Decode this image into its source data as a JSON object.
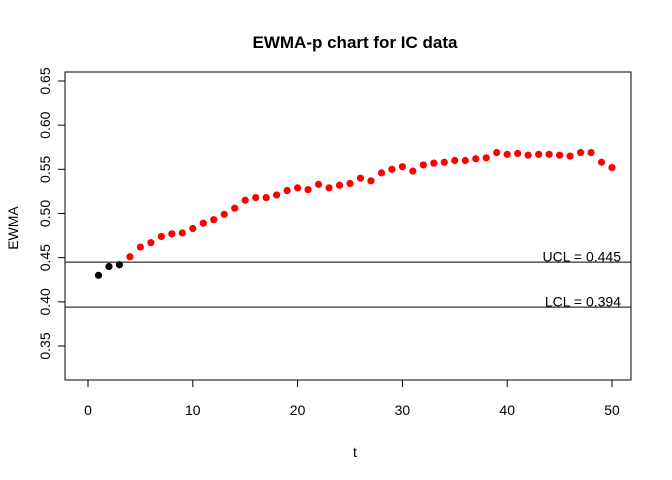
{
  "chart_data": {
    "type": "scatter",
    "title": "EWMA-p chart for IC data",
    "xlabel": "t",
    "ylabel": "EWMA",
    "xlim": [
      0,
      52
    ],
    "ylim": [
      0.31,
      0.66
    ],
    "x_ticks": [
      "0",
      "10",
      "20",
      "30",
      "40",
      "50"
    ],
    "y_ticks": [
      "0.35",
      "0.40",
      "0.45",
      "0.50",
      "0.55",
      "0.60",
      "0.65"
    ],
    "grid": false,
    "limits": [
      {
        "name": "UCL",
        "value": 0.445,
        "label": "UCL = 0.445"
      },
      {
        "name": "LCL",
        "value": 0.394,
        "label": "LCL = 0.394"
      }
    ],
    "series": [
      {
        "color": "#000000",
        "x": [
          1,
          2,
          3
        ],
        "y": [
          0.43,
          0.44,
          0.442
        ]
      },
      {
        "color": "#ff0000",
        "x": [
          4,
          5,
          6,
          7,
          8,
          9,
          10,
          11,
          12,
          13,
          14,
          15,
          16,
          17,
          18,
          19,
          20,
          21,
          22,
          23,
          24,
          25,
          26,
          27,
          28,
          29,
          30,
          31,
          32,
          33,
          34,
          35,
          36,
          37,
          38,
          39,
          40,
          41,
          42,
          43,
          44,
          45,
          46,
          47,
          48,
          49,
          50
        ],
        "y": [
          0.451,
          0.462,
          0.467,
          0.474,
          0.477,
          0.478,
          0.483,
          0.489,
          0.493,
          0.499,
          0.506,
          0.515,
          0.518,
          0.518,
          0.521,
          0.526,
          0.529,
          0.527,
          0.533,
          0.529,
          0.532,
          0.534,
          0.54,
          0.537,
          0.546,
          0.55,
          0.553,
          0.548,
          0.555,
          0.557,
          0.558,
          0.56,
          0.56,
          0.562,
          0.563,
          0.569,
          0.567,
          0.568,
          0.566,
          0.567,
          0.567,
          0.566,
          0.565,
          0.569,
          0.569,
          0.558,
          0.552
        ]
      }
    ]
  }
}
